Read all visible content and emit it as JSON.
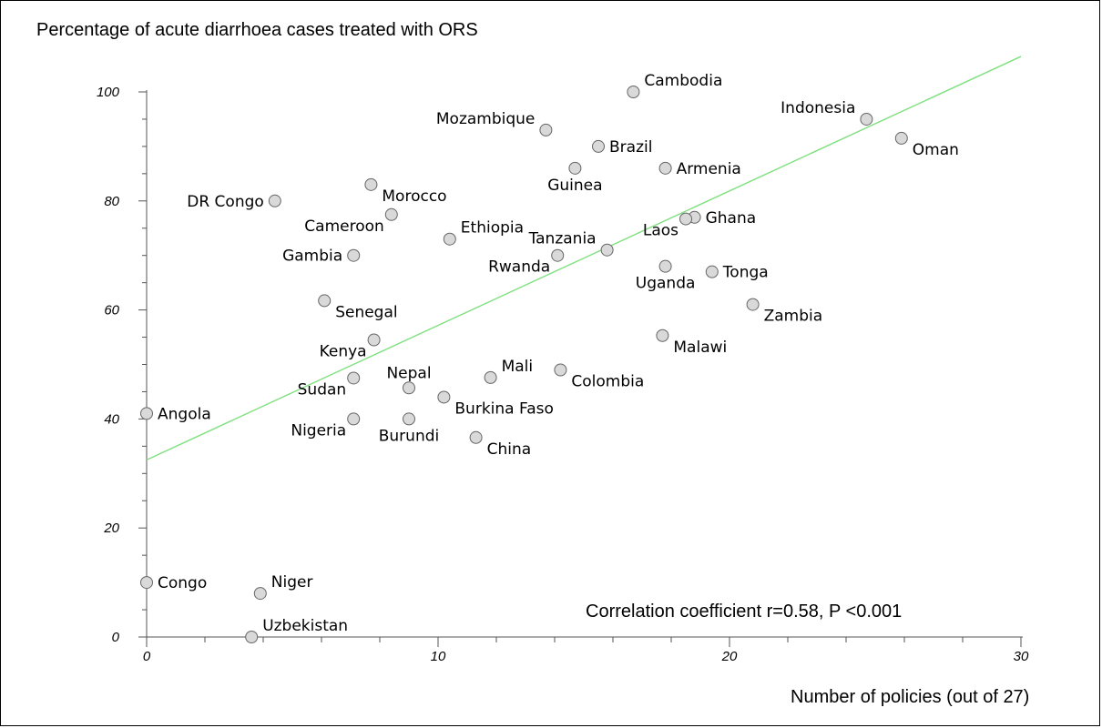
{
  "chart_data": {
    "type": "scatter",
    "ylabel": "Percentage of acute diarrhoea cases treated with ORS",
    "xlabel": "Number of policies (out of 27)",
    "annotation": "Correlation coefficient r=0.58, P <0.001",
    "xlim": [
      0,
      30
    ],
    "ylim": [
      0,
      100
    ],
    "x_ticks": [
      0,
      10,
      20,
      30
    ],
    "y_ticks": [
      0,
      20,
      40,
      60,
      80,
      100
    ],
    "trendline": {
      "x": [
        0,
        30
      ],
      "y": [
        32.5,
        106.5
      ],
      "color": "#7fe07f"
    },
    "marker_color": "#d9d9d9",
    "points": [
      {
        "label": "Cambodia",
        "x": 16.7,
        "y": 100,
        "anchor": "ne"
      },
      {
        "label": "Indonesia",
        "x": 24.7,
        "y": 95,
        "anchor": "nw"
      },
      {
        "label": "Oman",
        "x": 25.9,
        "y": 91.5,
        "anchor": "se"
      },
      {
        "label": "Mozambique",
        "x": 13.7,
        "y": 93,
        "anchor": "nw"
      },
      {
        "label": "Brazil",
        "x": 15.5,
        "y": 90,
        "anchor": "e"
      },
      {
        "label": "Guinea",
        "x": 14.7,
        "y": 86,
        "anchor": "s"
      },
      {
        "label": "Armenia",
        "x": 17.8,
        "y": 86,
        "anchor": "e"
      },
      {
        "label": "DR Congo",
        "x": 4.4,
        "y": 80,
        "anchor": "w"
      },
      {
        "label": "Morocco",
        "x": 7.7,
        "y": 83,
        "anchor": "se"
      },
      {
        "label": "Cameroon",
        "x": 8.4,
        "y": 77.5,
        "anchor": "sw"
      },
      {
        "label": "Ethiopia",
        "x": 10.4,
        "y": 73,
        "anchor": "ne"
      },
      {
        "label": "Ghana",
        "x": 18.8,
        "y": 77,
        "anchor": "e"
      },
      {
        "label": "Laos",
        "x": 18.5,
        "y": 76.7,
        "anchor": "sw"
      },
      {
        "label": "Tanzania",
        "x": 15.8,
        "y": 71,
        "anchor": "nw"
      },
      {
        "label": "Gambia",
        "x": 7.1,
        "y": 70,
        "anchor": "w"
      },
      {
        "label": "Rwanda",
        "x": 14.1,
        "y": 70,
        "anchor": "sw"
      },
      {
        "label": "Uganda",
        "x": 17.8,
        "y": 68,
        "anchor": "s"
      },
      {
        "label": "Tonga",
        "x": 19.4,
        "y": 67,
        "anchor": "e"
      },
      {
        "label": "Senegal",
        "x": 6.1,
        "y": 61.7,
        "anchor": "se"
      },
      {
        "label": "Zambia",
        "x": 20.8,
        "y": 61,
        "anchor": "se"
      },
      {
        "label": "Kenya",
        "x": 7.8,
        "y": 54.5,
        "anchor": "sw"
      },
      {
        "label": "Malawi",
        "x": 17.7,
        "y": 55.3,
        "anchor": "se"
      },
      {
        "label": "Mali",
        "x": 11.8,
        "y": 47.6,
        "anchor": "ne"
      },
      {
        "label": "Colombia",
        "x": 14.2,
        "y": 49,
        "anchor": "se"
      },
      {
        "label": "Sudan",
        "x": 7.1,
        "y": 47.5,
        "anchor": "sw"
      },
      {
        "label": "Nepal",
        "x": 9.0,
        "y": 45.7,
        "anchor": "n"
      },
      {
        "label": "Burkina Faso",
        "x": 10.2,
        "y": 44,
        "anchor": "se"
      },
      {
        "label": "Angola",
        "x": 0,
        "y": 41,
        "anchor": "e"
      },
      {
        "label": "Nigeria",
        "x": 7.1,
        "y": 40,
        "anchor": "sw"
      },
      {
        "label": "Burundi",
        "x": 9.0,
        "y": 40,
        "anchor": "s"
      },
      {
        "label": "China",
        "x": 11.3,
        "y": 36.6,
        "anchor": "se"
      },
      {
        "label": "Congo",
        "x": 0,
        "y": 10,
        "anchor": "e"
      },
      {
        "label": "Niger",
        "x": 3.9,
        "y": 8,
        "anchor": "ne"
      },
      {
        "label": "Uzbekistan",
        "x": 3.6,
        "y": 0,
        "anchor": "ne"
      }
    ]
  }
}
